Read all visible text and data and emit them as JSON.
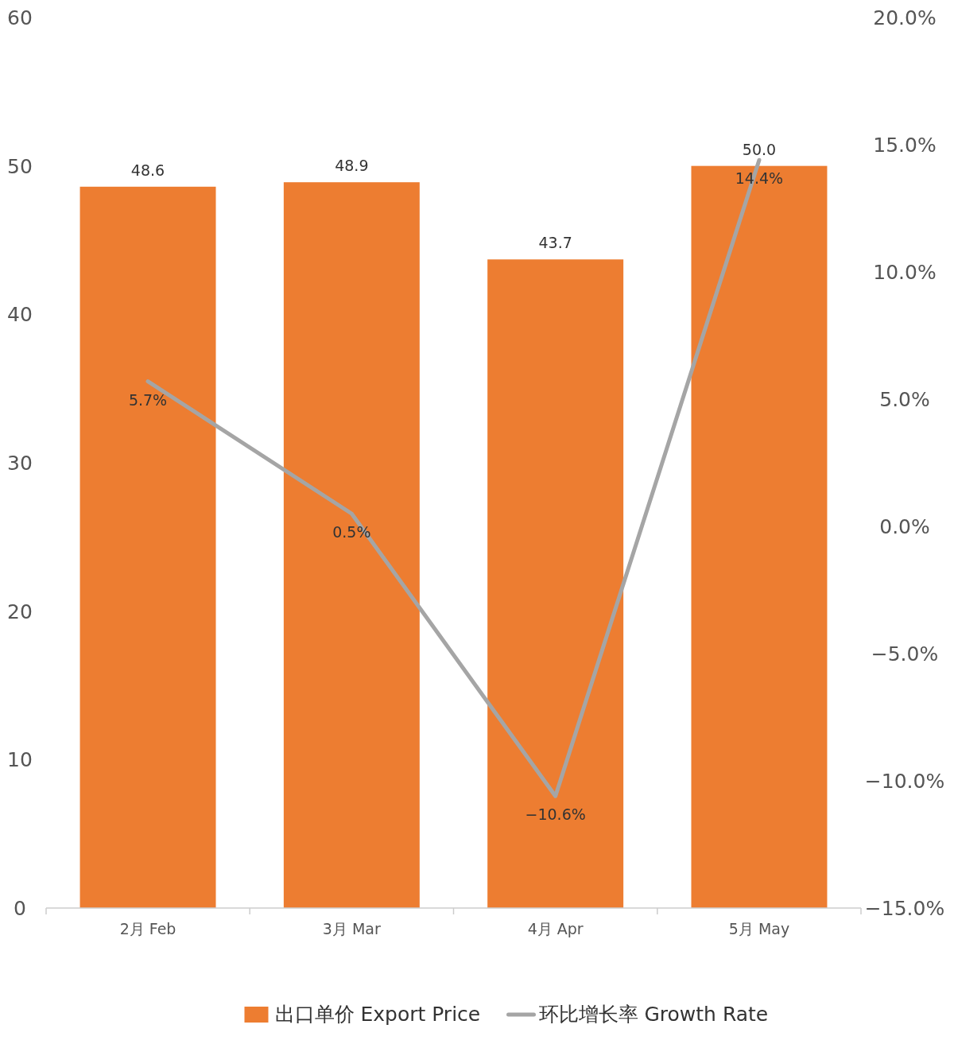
{
  "chart_data": {
    "type": "bar",
    "categories": [
      "2月 Feb",
      "3月 Mar",
      "4月 Apr",
      "5月 May"
    ],
    "series": [
      {
        "name": "出口单价 Export Price",
        "color": "#ed7d31",
        "values": [
          48.6,
          48.9,
          43.7,
          50.0
        ],
        "value_labels": [
          "48.6",
          "48.9",
          "43.7",
          "50.0"
        ]
      },
      {
        "name": "环比增长率 Growth Rate",
        "type": "line",
        "axis": "y2",
        "color": "#a5a5a5",
        "values": [
          5.7,
          0.5,
          -10.6,
          14.4
        ],
        "value_labels": [
          "5.7%",
          "0.5%",
          "−10.6%",
          "14.4%"
        ]
      }
    ],
    "ylim": [
      0,
      60
    ],
    "yticks": [
      0,
      10,
      20,
      30,
      40,
      50,
      60
    ],
    "y2lim": [
      -15,
      20
    ],
    "y2ticks": [
      {
        "value": -15,
        "label": "−15.0%"
      },
      {
        "value": -10,
        "label": "−10.0%"
      },
      {
        "value": -5,
        "label": "−5.0%"
      },
      {
        "value": 0,
        "label": "0.0%"
      },
      {
        "value": 5,
        "label": "5.0%"
      },
      {
        "value": 10,
        "label": "10.0%"
      },
      {
        "value": 15,
        "label": "15.0%"
      },
      {
        "value": 20,
        "label": "20.0%"
      }
    ],
    "grid": false,
    "legend": "bottom",
    "marker": "none",
    "line_style": "solid"
  }
}
